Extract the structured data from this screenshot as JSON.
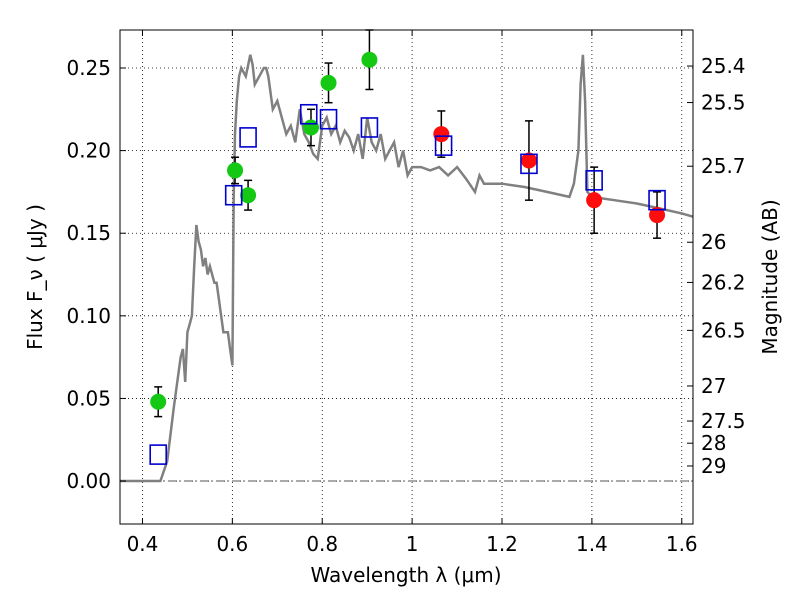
{
  "chart_data": {
    "type": "scatter",
    "title": "",
    "xlabel": "Wavelength  λ (μm)",
    "ylabel": "Flux  F_ν  ( μJy )",
    "ylabel_right": "Magnitude (AB)",
    "xlim": [
      0.35,
      1.625
    ],
    "ylim": [
      -0.026,
      0.273
    ],
    "grid": true,
    "x_ticks": [
      {
        "value": 0.4,
        "label": "0.4"
      },
      {
        "value": 0.6,
        "label": "0.6"
      },
      {
        "value": 0.8,
        "label": "0.8"
      },
      {
        "value": 1.0,
        "label": "1"
      },
      {
        "value": 1.2,
        "label": "1.2"
      },
      {
        "value": 1.4,
        "label": "1.4"
      },
      {
        "value": 1.6,
        "label": "1.6"
      }
    ],
    "y_ticks": [
      {
        "value": 0.0,
        "label": "0.00"
      },
      {
        "value": 0.05,
        "label": "0.05"
      },
      {
        "value": 0.1,
        "label": "0.10"
      },
      {
        "value": 0.15,
        "label": "0.15"
      },
      {
        "value": 0.2,
        "label": "0.20"
      },
      {
        "value": 0.25,
        "label": "0.25"
      }
    ],
    "magnitude_ticks": [
      {
        "value": 25.4,
        "label": "25.4"
      },
      {
        "value": 25.5,
        "label": "25.5"
      },
      {
        "value": 25.7,
        "label": "25.7"
      },
      {
        "value": 26,
        "label": "26"
      },
      {
        "value": 26.2,
        "label": "26.2"
      },
      {
        "value": 26.5,
        "label": "26.5"
      },
      {
        "value": 27,
        "label": "27"
      },
      {
        "value": 27.5,
        "label": "27.5"
      },
      {
        "value": 28,
        "label": "28"
      },
      {
        "value": 29,
        "label": "29"
      }
    ],
    "colors": {
      "model": "#808080",
      "green": "#14c814",
      "red": "#ff0d0d",
      "blue": "#0000d0",
      "errorbar": "#000000",
      "zero_line": "#555555"
    },
    "series": [
      {
        "kind": "line",
        "x": [
          0.35,
          0.43,
          0.44,
          0.455,
          0.47,
          0.48,
          0.485,
          0.49,
          0.495,
          0.5,
          0.505,
          0.51,
          0.515,
          0.52,
          0.525,
          0.53,
          0.535,
          0.54,
          0.545,
          0.55,
          0.56,
          0.565,
          0.57,
          0.58,
          0.59,
          0.595,
          0.6,
          0.603,
          0.606,
          0.61,
          0.615,
          0.62,
          0.63,
          0.64,
          0.645,
          0.65,
          0.66,
          0.67,
          0.675,
          0.68,
          0.69,
          0.7,
          0.71,
          0.72,
          0.73,
          0.74,
          0.75,
          0.76,
          0.77,
          0.78,
          0.79,
          0.8,
          0.81,
          0.82,
          0.83,
          0.84,
          0.85,
          0.86,
          0.87,
          0.88,
          0.89,
          0.9,
          0.91,
          0.92,
          0.93,
          0.94,
          0.95,
          0.96,
          0.97,
          0.98,
          0.99,
          1.0,
          1.02,
          1.04,
          1.06,
          1.08,
          1.1,
          1.12,
          1.14,
          1.15,
          1.16,
          1.2,
          1.25,
          1.3,
          1.35,
          1.36,
          1.37,
          1.375,
          1.38,
          1.385,
          1.39,
          1.4,
          1.45,
          1.5,
          1.55,
          1.6,
          1.625
        ],
        "y": [
          0.0,
          0.0,
          0.0,
          0.012,
          0.045,
          0.065,
          0.075,
          0.08,
          0.06,
          0.09,
          0.095,
          0.1,
          0.13,
          0.155,
          0.145,
          0.14,
          0.13,
          0.135,
          0.125,
          0.13,
          0.12,
          0.12,
          0.11,
          0.09,
          0.09,
          0.08,
          0.07,
          0.172,
          0.21,
          0.23,
          0.245,
          0.25,
          0.245,
          0.258,
          0.252,
          0.24,
          0.245,
          0.25,
          0.25,
          0.245,
          0.225,
          0.23,
          0.22,
          0.21,
          0.215,
          0.205,
          0.225,
          0.21,
          0.205,
          0.198,
          0.195,
          0.215,
          0.22,
          0.21,
          0.215,
          0.205,
          0.212,
          0.208,
          0.2,
          0.21,
          0.195,
          0.22,
          0.205,
          0.2,
          0.21,
          0.195,
          0.2,
          0.205,
          0.19,
          0.2,
          0.185,
          0.19,
          0.19,
          0.188,
          0.19,
          0.185,
          0.19,
          0.183,
          0.175,
          0.185,
          0.18,
          0.18,
          0.178,
          0.175,
          0.172,
          0.18,
          0.2,
          0.24,
          0.258,
          0.23,
          0.175,
          0.172,
          0.17,
          0.168,
          0.165,
          0.162,
          0.16
        ]
      },
      {
        "kind": "points",
        "marker": "circle",
        "color": "green",
        "points": [
          {
            "x": 0.435,
            "y": 0.048,
            "err": 0.009
          },
          {
            "x": 0.606,
            "y": 0.188,
            "err": 0.008
          },
          {
            "x": 0.635,
            "y": 0.173,
            "err": 0.009
          },
          {
            "x": 0.775,
            "y": 0.214,
            "err": 0.011
          },
          {
            "x": 0.814,
            "y": 0.241,
            "err": 0.012
          },
          {
            "x": 0.905,
            "y": 0.255,
            "err": 0.018
          }
        ]
      },
      {
        "kind": "points",
        "marker": "circle",
        "color": "red",
        "points": [
          {
            "x": 1.065,
            "y": 0.21,
            "err": 0.014
          },
          {
            "x": 1.26,
            "y": 0.194,
            "err": 0.024
          },
          {
            "x": 1.405,
            "y": 0.17,
            "err": 0.02
          },
          {
            "x": 1.545,
            "y": 0.161,
            "err": 0.014
          }
        ]
      },
      {
        "kind": "points",
        "marker": "square",
        "color": "blue",
        "points": [
          {
            "x": 0.435,
            "y": 0.016
          },
          {
            "x": 0.603,
            "y": 0.173
          },
          {
            "x": 0.635,
            "y": 0.208
          },
          {
            "x": 0.77,
            "y": 0.222
          },
          {
            "x": 0.814,
            "y": 0.219
          },
          {
            "x": 0.905,
            "y": 0.214
          },
          {
            "x": 1.07,
            "y": 0.203
          },
          {
            "x": 1.26,
            "y": 0.192
          },
          {
            "x": 1.405,
            "y": 0.182
          },
          {
            "x": 1.545,
            "y": 0.17
          }
        ]
      }
    ]
  }
}
